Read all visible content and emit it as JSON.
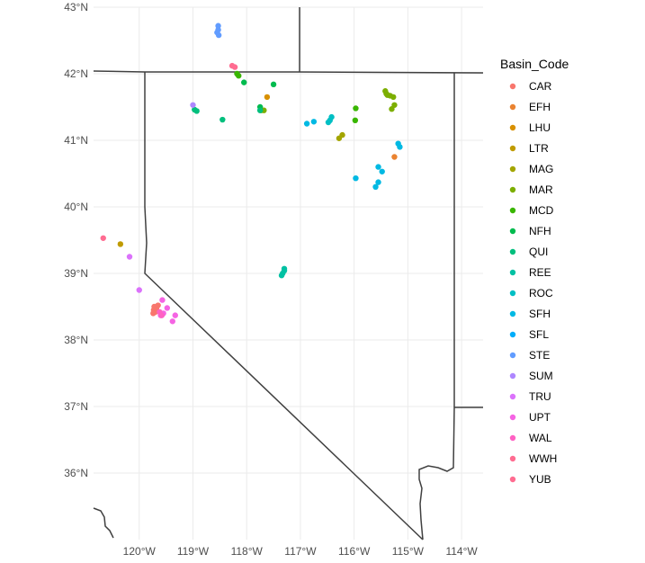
{
  "chart_data": {
    "type": "scatter",
    "title": "",
    "xlabel": "",
    "ylabel": "",
    "xlim": [
      -120.85,
      -113.6
    ],
    "ylim": [
      35.0,
      43.0
    ],
    "grid": true,
    "legend_position": "right",
    "legend_title": "Basin_Code",
    "x_ticks": [
      {
        "value": -120,
        "label": "120°W"
      },
      {
        "value": -119,
        "label": "119°W"
      },
      {
        "value": -118,
        "label": "118°W"
      },
      {
        "value": -117,
        "label": "117°W"
      },
      {
        "value": -116,
        "label": "116°W"
      },
      {
        "value": -115,
        "label": "115°W"
      },
      {
        "value": -114,
        "label": "114°W"
      }
    ],
    "y_ticks": [
      {
        "value": 36,
        "label": "36°N"
      },
      {
        "value": 37,
        "label": "37°N"
      },
      {
        "value": 38,
        "label": "38°N"
      },
      {
        "value": 39,
        "label": "39°N"
      },
      {
        "value": 40,
        "label": "40°N"
      },
      {
        "value": 41,
        "label": "41°N"
      },
      {
        "value": 42,
        "label": "42°N"
      },
      {
        "value": 43,
        "label": "43°N"
      }
    ],
    "series": [
      {
        "name": "CAR",
        "color": "#F8766D",
        "points": [
          [
            -119.73,
            38.45
          ],
          [
            -119.72,
            38.5
          ],
          [
            -119.7,
            38.42
          ],
          [
            -119.68,
            38.47
          ],
          [
            -119.65,
            38.52
          ],
          [
            -119.74,
            38.4
          ]
        ]
      },
      {
        "name": "EFH",
        "color": "#EA8331",
        "points": [
          [
            -115.25,
            40.75
          ]
        ]
      },
      {
        "name": "LHU",
        "color": "#D89000",
        "points": [
          [
            -117.62,
            41.65
          ]
        ]
      },
      {
        "name": "LTR",
        "color": "#C09B00",
        "points": [
          [
            -120.35,
            39.44
          ]
        ]
      },
      {
        "name": "MAG",
        "color": "#A3A500",
        "points": [
          [
            -116.28,
            41.03
          ],
          [
            -116.22,
            41.08
          ]
        ]
      },
      {
        "name": "MAR",
        "color": "#7CAE00",
        "points": [
          [
            -115.42,
            41.74
          ],
          [
            -115.4,
            41.7
          ],
          [
            -115.38,
            41.68
          ],
          [
            -115.33,
            41.67
          ],
          [
            -115.27,
            41.65
          ],
          [
            -115.3,
            41.47
          ],
          [
            -115.25,
            41.53
          ],
          [
            -117.73,
            41.45
          ],
          [
            -117.68,
            41.45
          ]
        ]
      },
      {
        "name": "MCD",
        "color": "#39B600",
        "points": [
          [
            -115.97,
            41.48
          ],
          [
            -115.98,
            41.3
          ],
          [
            -118.15,
            41.97
          ],
          [
            -118.18,
            42.0
          ]
        ]
      },
      {
        "name": "NFH",
        "color": "#00BB4E",
        "points": [
          [
            -117.5,
            41.84
          ],
          [
            -118.05,
            41.87
          ],
          [
            -117.75,
            41.5
          ]
        ]
      },
      {
        "name": "QUI",
        "color": "#00BF7D",
        "points": [
          [
            -118.45,
            41.31
          ],
          [
            -118.97,
            41.46
          ],
          [
            -118.93,
            41.44
          ],
          [
            -117.75,
            41.45
          ]
        ]
      },
      {
        "name": "REE",
        "color": "#00C1A3",
        "points": [
          [
            -117.3,
            39.07
          ],
          [
            -117.33,
            39.0
          ],
          [
            -117.35,
            38.97
          ],
          [
            -117.3,
            39.04
          ]
        ]
      },
      {
        "name": "ROC",
        "color": "#00BFC4",
        "points": [
          [
            -116.42,
            41.35
          ],
          [
            -116.48,
            41.27
          ],
          [
            -116.45,
            41.3
          ]
        ]
      },
      {
        "name": "SFH",
        "color": "#00B9E3",
        "points": [
          [
            -116.88,
            41.25
          ],
          [
            -116.75,
            41.28
          ],
          [
            -115.18,
            40.95
          ],
          [
            -115.15,
            40.9
          ],
          [
            -115.55,
            40.6
          ],
          [
            -115.48,
            40.53
          ],
          [
            -115.55,
            40.37
          ],
          [
            -115.6,
            40.3
          ],
          [
            -115.97,
            40.43
          ]
        ]
      },
      {
        "name": "SFL",
        "color": "#00ADFA",
        "points": []
      },
      {
        "name": "STE",
        "color": "#619CFF",
        "points": [
          [
            -118.53,
            42.72
          ],
          [
            -118.53,
            42.66
          ],
          [
            -118.55,
            42.62
          ],
          [
            -118.52,
            42.58
          ]
        ]
      },
      {
        "name": "SUM",
        "color": "#AE87FF",
        "points": [
          [
            -119.0,
            41.53
          ]
        ]
      },
      {
        "name": "TRU",
        "color": "#DB72FB",
        "points": [
          [
            -120.18,
            39.25
          ],
          [
            -120.0,
            38.75
          ]
        ]
      },
      {
        "name": "UPT",
        "color": "#F564E3",
        "points": [
          [
            -119.57,
            38.6
          ],
          [
            -119.48,
            38.48
          ],
          [
            -119.33,
            38.37
          ],
          [
            -119.38,
            38.28
          ],
          [
            -119.6,
            38.37
          ],
          [
            -119.55,
            38.4
          ]
        ]
      },
      {
        "name": "WAL",
        "color": "#FF61C3",
        "points": [
          [
            -119.62,
            38.42
          ],
          [
            -119.58,
            38.37
          ]
        ]
      },
      {
        "name": "WWH",
        "color": "#FF6C91",
        "points": [
          [
            -118.27,
            42.12
          ],
          [
            -118.22,
            42.1
          ]
        ]
      },
      {
        "name": "YUB",
        "color": "#FF6C91",
        "points": [
          [
            -120.67,
            39.53
          ]
        ]
      }
    ]
  }
}
